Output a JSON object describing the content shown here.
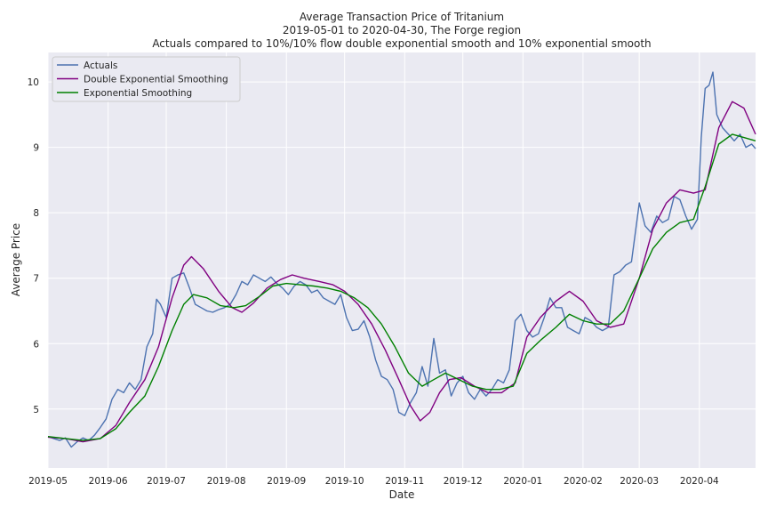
{
  "chart_data": {
    "type": "line",
    "title_lines": [
      "Average Transaction Price of Tritanium",
      "2019-05-01 to 2020-04-30, The Forge region",
      "Actuals compared to 10%/10% flow double exponential smooth and 10% exponential smooth"
    ],
    "xlabel": "Date",
    "ylabel": "Average Price",
    "x_range": [
      "2019-05-01",
      "2020-04-30"
    ],
    "ylim": [
      4.1,
      10.45
    ],
    "x_ticks": [
      {
        "date": "2019-05-01",
        "label": "2019-05"
      },
      {
        "date": "2019-06-01",
        "label": "2019-06"
      },
      {
        "date": "2019-07-01",
        "label": "2019-07"
      },
      {
        "date": "2019-08-01",
        "label": "2019-08"
      },
      {
        "date": "2019-09-01",
        "label": "2019-09"
      },
      {
        "date": "2019-10-01",
        "label": "2019-10"
      },
      {
        "date": "2019-11-01",
        "label": "2019-11"
      },
      {
        "date": "2019-12-01",
        "label": "2019-12"
      },
      {
        "date": "2020-01-01",
        "label": "2020-01"
      },
      {
        "date": "2020-02-01",
        "label": "2020-02"
      },
      {
        "date": "2020-03-01",
        "label": "2020-03"
      },
      {
        "date": "2020-04-01",
        "label": "2020-04"
      }
    ],
    "y_ticks": [
      5,
      6,
      7,
      8,
      9,
      10
    ],
    "grid": true,
    "legend_position": "top-left",
    "series": [
      {
        "name": "Actuals",
        "color": "#4c72b0",
        "points": [
          [
            "2019-05-01",
            4.58
          ],
          [
            "2019-05-04",
            4.55
          ],
          [
            "2019-05-07",
            4.52
          ],
          [
            "2019-05-10",
            4.56
          ],
          [
            "2019-05-13",
            4.42
          ],
          [
            "2019-05-16",
            4.5
          ],
          [
            "2019-05-19",
            4.56
          ],
          [
            "2019-05-22",
            4.52
          ],
          [
            "2019-05-25",
            4.6
          ],
          [
            "2019-05-28",
            4.72
          ],
          [
            "2019-05-31",
            4.85
          ],
          [
            "2019-06-03",
            5.15
          ],
          [
            "2019-06-06",
            5.3
          ],
          [
            "2019-06-09",
            5.25
          ],
          [
            "2019-06-12",
            5.4
          ],
          [
            "2019-06-15",
            5.3
          ],
          [
            "2019-06-18",
            5.45
          ],
          [
            "2019-06-21",
            5.95
          ],
          [
            "2019-06-24",
            6.15
          ],
          [
            "2019-06-26",
            6.68
          ],
          [
            "2019-06-28",
            6.6
          ],
          [
            "2019-07-01",
            6.4
          ],
          [
            "2019-07-04",
            7.0
          ],
          [
            "2019-07-07",
            7.05
          ],
          [
            "2019-07-10",
            7.08
          ],
          [
            "2019-07-13",
            6.85
          ],
          [
            "2019-07-16",
            6.6
          ],
          [
            "2019-07-19",
            6.55
          ],
          [
            "2019-07-22",
            6.5
          ],
          [
            "2019-07-25",
            6.48
          ],
          [
            "2019-07-28",
            6.52
          ],
          [
            "2019-07-31",
            6.55
          ],
          [
            "2019-08-03",
            6.6
          ],
          [
            "2019-08-06",
            6.75
          ],
          [
            "2019-08-09",
            6.95
          ],
          [
            "2019-08-12",
            6.9
          ],
          [
            "2019-08-15",
            7.05
          ],
          [
            "2019-08-18",
            7.0
          ],
          [
            "2019-08-21",
            6.95
          ],
          [
            "2019-08-24",
            7.02
          ],
          [
            "2019-08-27",
            6.92
          ],
          [
            "2019-08-30",
            6.85
          ],
          [
            "2019-09-02",
            6.75
          ],
          [
            "2019-09-05",
            6.88
          ],
          [
            "2019-09-08",
            6.95
          ],
          [
            "2019-09-11",
            6.9
          ],
          [
            "2019-09-14",
            6.78
          ],
          [
            "2019-09-17",
            6.82
          ],
          [
            "2019-09-20",
            6.7
          ],
          [
            "2019-09-23",
            6.65
          ],
          [
            "2019-09-26",
            6.6
          ],
          [
            "2019-09-29",
            6.75
          ],
          [
            "2019-10-02",
            6.4
          ],
          [
            "2019-10-05",
            6.2
          ],
          [
            "2019-10-08",
            6.22
          ],
          [
            "2019-10-11",
            6.35
          ],
          [
            "2019-10-14",
            6.1
          ],
          [
            "2019-10-17",
            5.75
          ],
          [
            "2019-10-20",
            5.5
          ],
          [
            "2019-10-23",
            5.45
          ],
          [
            "2019-10-26",
            5.3
          ],
          [
            "2019-10-29",
            4.95
          ],
          [
            "2019-11-01",
            4.9
          ],
          [
            "2019-11-04",
            5.1
          ],
          [
            "2019-11-07",
            5.25
          ],
          [
            "2019-11-10",
            5.65
          ],
          [
            "2019-11-13",
            5.35
          ],
          [
            "2019-11-16",
            6.08
          ],
          [
            "2019-11-19",
            5.55
          ],
          [
            "2019-11-22",
            5.6
          ],
          [
            "2019-11-25",
            5.2
          ],
          [
            "2019-11-28",
            5.4
          ],
          [
            "2019-12-01",
            5.5
          ],
          [
            "2019-12-04",
            5.25
          ],
          [
            "2019-12-07",
            5.15
          ],
          [
            "2019-12-10",
            5.3
          ],
          [
            "2019-12-13",
            5.2
          ],
          [
            "2019-12-16",
            5.3
          ],
          [
            "2019-12-19",
            5.45
          ],
          [
            "2019-12-22",
            5.4
          ],
          [
            "2019-12-25",
            5.6
          ],
          [
            "2019-12-28",
            6.35
          ],
          [
            "2019-12-31",
            6.45
          ],
          [
            "2020-01-03",
            6.2
          ],
          [
            "2020-01-06",
            6.1
          ],
          [
            "2020-01-09",
            6.15
          ],
          [
            "2020-01-12",
            6.4
          ],
          [
            "2020-01-15",
            6.7
          ],
          [
            "2020-01-18",
            6.55
          ],
          [
            "2020-01-21",
            6.55
          ],
          [
            "2020-01-24",
            6.25
          ],
          [
            "2020-01-27",
            6.2
          ],
          [
            "2020-01-30",
            6.15
          ],
          [
            "2020-02-02",
            6.4
          ],
          [
            "2020-02-05",
            6.35
          ],
          [
            "2020-02-08",
            6.25
          ],
          [
            "2020-02-11",
            6.2
          ],
          [
            "2020-02-14",
            6.25
          ],
          [
            "2020-02-17",
            7.05
          ],
          [
            "2020-02-20",
            7.1
          ],
          [
            "2020-02-23",
            7.2
          ],
          [
            "2020-02-26",
            7.25
          ],
          [
            "2020-03-01",
            8.15
          ],
          [
            "2020-03-04",
            7.8
          ],
          [
            "2020-03-07",
            7.7
          ],
          [
            "2020-03-10",
            7.95
          ],
          [
            "2020-03-13",
            7.85
          ],
          [
            "2020-03-16",
            7.9
          ],
          [
            "2020-03-19",
            8.25
          ],
          [
            "2020-03-22",
            8.2
          ],
          [
            "2020-03-25",
            7.95
          ],
          [
            "2020-03-28",
            7.75
          ],
          [
            "2020-03-31",
            7.9
          ],
          [
            "2020-04-02",
            9.15
          ],
          [
            "2020-04-04",
            9.9
          ],
          [
            "2020-04-06",
            9.95
          ],
          [
            "2020-04-08",
            10.15
          ],
          [
            "2020-04-10",
            9.5
          ],
          [
            "2020-04-13",
            9.3
          ],
          [
            "2020-04-16",
            9.2
          ],
          [
            "2020-04-19",
            9.1
          ],
          [
            "2020-04-22",
            9.2
          ],
          [
            "2020-04-25",
            9.0
          ],
          [
            "2020-04-28",
            9.05
          ],
          [
            "2020-04-30",
            8.98
          ]
        ]
      },
      {
        "name": "Double Exponential Smoothing",
        "color": "#800080",
        "points": [
          [
            "2019-05-01",
            4.57
          ],
          [
            "2019-05-10",
            4.55
          ],
          [
            "2019-05-19",
            4.5
          ],
          [
            "2019-05-28",
            4.55
          ],
          [
            "2019-06-05",
            4.75
          ],
          [
            "2019-06-12",
            5.1
          ],
          [
            "2019-06-20",
            5.45
          ],
          [
            "2019-06-27",
            5.95
          ],
          [
            "2019-07-04",
            6.7
          ],
          [
            "2019-07-10",
            7.2
          ],
          [
            "2019-07-14",
            7.33
          ],
          [
            "2019-07-20",
            7.15
          ],
          [
            "2019-07-28",
            6.8
          ],
          [
            "2019-08-04",
            6.55
          ],
          [
            "2019-08-09",
            6.48
          ],
          [
            "2019-08-15",
            6.62
          ],
          [
            "2019-08-22",
            6.85
          ],
          [
            "2019-08-29",
            6.98
          ],
          [
            "2019-09-04",
            7.05
          ],
          [
            "2019-09-10",
            7.0
          ],
          [
            "2019-09-18",
            6.95
          ],
          [
            "2019-09-25",
            6.9
          ],
          [
            "2019-10-01",
            6.8
          ],
          [
            "2019-10-08",
            6.6
          ],
          [
            "2019-10-15",
            6.3
          ],
          [
            "2019-10-22",
            5.9
          ],
          [
            "2019-10-29",
            5.45
          ],
          [
            "2019-11-04",
            5.05
          ],
          [
            "2019-11-09",
            4.82
          ],
          [
            "2019-11-14",
            4.95
          ],
          [
            "2019-11-19",
            5.25
          ],
          [
            "2019-11-24",
            5.45
          ],
          [
            "2019-11-30",
            5.48
          ],
          [
            "2019-12-07",
            5.35
          ],
          [
            "2019-12-14",
            5.25
          ],
          [
            "2019-12-21",
            5.25
          ],
          [
            "2019-12-28",
            5.4
          ],
          [
            "2020-01-03",
            6.1
          ],
          [
            "2020-01-10",
            6.4
          ],
          [
            "2020-01-18",
            6.65
          ],
          [
            "2020-01-25",
            6.8
          ],
          [
            "2020-02-01",
            6.65
          ],
          [
            "2020-02-08",
            6.35
          ],
          [
            "2020-02-15",
            6.25
          ],
          [
            "2020-02-22",
            6.3
          ],
          [
            "2020-03-01",
            7.0
          ],
          [
            "2020-03-08",
            7.75
          ],
          [
            "2020-03-15",
            8.15
          ],
          [
            "2020-03-22",
            8.35
          ],
          [
            "2020-03-29",
            8.3
          ],
          [
            "2020-04-04",
            8.35
          ],
          [
            "2020-04-11",
            9.3
          ],
          [
            "2020-04-18",
            9.7
          ],
          [
            "2020-04-24",
            9.6
          ],
          [
            "2020-04-30",
            9.2
          ]
        ]
      },
      {
        "name": "Exponential Smoothing",
        "color": "#008000",
        "points": [
          [
            "2019-05-01",
            4.58
          ],
          [
            "2019-05-10",
            4.55
          ],
          [
            "2019-05-19",
            4.52
          ],
          [
            "2019-05-28",
            4.55
          ],
          [
            "2019-06-05",
            4.7
          ],
          [
            "2019-06-12",
            4.95
          ],
          [
            "2019-06-20",
            5.2
          ],
          [
            "2019-06-27",
            5.65
          ],
          [
            "2019-07-04",
            6.2
          ],
          [
            "2019-07-10",
            6.6
          ],
          [
            "2019-07-15",
            6.75
          ],
          [
            "2019-07-22",
            6.7
          ],
          [
            "2019-07-29",
            6.58
          ],
          [
            "2019-08-05",
            6.55
          ],
          [
            "2019-08-11",
            6.58
          ],
          [
            "2019-08-18",
            6.72
          ],
          [
            "2019-08-25",
            6.88
          ],
          [
            "2019-09-01",
            6.92
          ],
          [
            "2019-09-08",
            6.9
          ],
          [
            "2019-09-15",
            6.88
          ],
          [
            "2019-09-22",
            6.85
          ],
          [
            "2019-09-29",
            6.8
          ],
          [
            "2019-10-06",
            6.7
          ],
          [
            "2019-10-13",
            6.55
          ],
          [
            "2019-10-20",
            6.3
          ],
          [
            "2019-10-27",
            5.95
          ],
          [
            "2019-11-03",
            5.55
          ],
          [
            "2019-11-10",
            5.35
          ],
          [
            "2019-11-16",
            5.45
          ],
          [
            "2019-11-22",
            5.55
          ],
          [
            "2019-11-29",
            5.45
          ],
          [
            "2019-12-06",
            5.35
          ],
          [
            "2019-12-13",
            5.3
          ],
          [
            "2019-12-20",
            5.3
          ],
          [
            "2019-12-27",
            5.35
          ],
          [
            "2020-01-03",
            5.85
          ],
          [
            "2020-01-10",
            6.05
          ],
          [
            "2020-01-18",
            6.25
          ],
          [
            "2020-01-25",
            6.45
          ],
          [
            "2020-02-01",
            6.35
          ],
          [
            "2020-02-08",
            6.3
          ],
          [
            "2020-02-15",
            6.3
          ],
          [
            "2020-02-22",
            6.5
          ],
          [
            "2020-03-01",
            7.0
          ],
          [
            "2020-03-08",
            7.45
          ],
          [
            "2020-03-15",
            7.7
          ],
          [
            "2020-03-22",
            7.85
          ],
          [
            "2020-03-29",
            7.9
          ],
          [
            "2020-04-04",
            8.4
          ],
          [
            "2020-04-11",
            9.05
          ],
          [
            "2020-04-18",
            9.2
          ],
          [
            "2020-04-24",
            9.15
          ],
          [
            "2020-04-30",
            9.1
          ]
        ]
      }
    ]
  }
}
